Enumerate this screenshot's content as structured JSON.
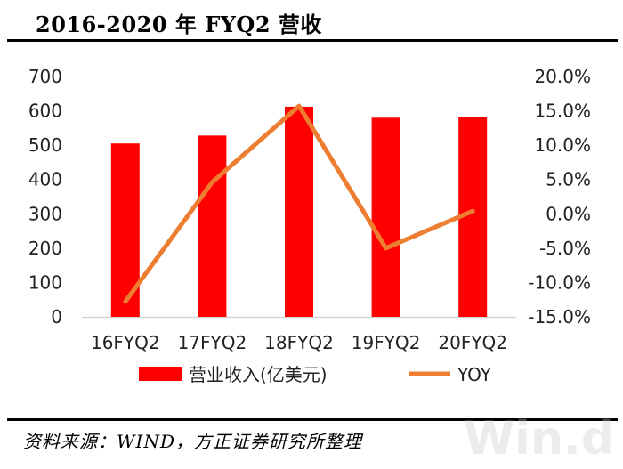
{
  "title": "2016-2020 年 FYQ2 营收",
  "source": "资料来源：WIND，方正证券研究所整理",
  "watermark": "Win.d",
  "colors": {
    "bar": "#ff0000",
    "line": "#ed7d31"
  },
  "chart_data": {
    "type": "bar",
    "categories": [
      "16FYQ2",
      "17FYQ2",
      "18FYQ2",
      "19FYQ2",
      "20FYQ2"
    ],
    "series": [
      {
        "name": "营业收入(亿美元)",
        "type": "bar",
        "axis": "left",
        "values": [
          505,
          528,
          612,
          580,
          583
        ]
      },
      {
        "name": "YOY",
        "type": "line",
        "axis": "right",
        "values": [
          -12.8,
          4.6,
          15.7,
          -5.0,
          0.4
        ]
      }
    ],
    "y_left": {
      "min": 0,
      "max": 700,
      "ticks": [
        "0",
        "100",
        "200",
        "300",
        "400",
        "500",
        "600",
        "700"
      ]
    },
    "y_right": {
      "min": -15,
      "max": 20,
      "ticks": [
        "-15.0%",
        "-10.0%",
        "-5.0%",
        "0.0%",
        "5.0%",
        "10.0%",
        "15.0%",
        "20.0%"
      ]
    },
    "grid": false,
    "legend_position": "bottom"
  }
}
